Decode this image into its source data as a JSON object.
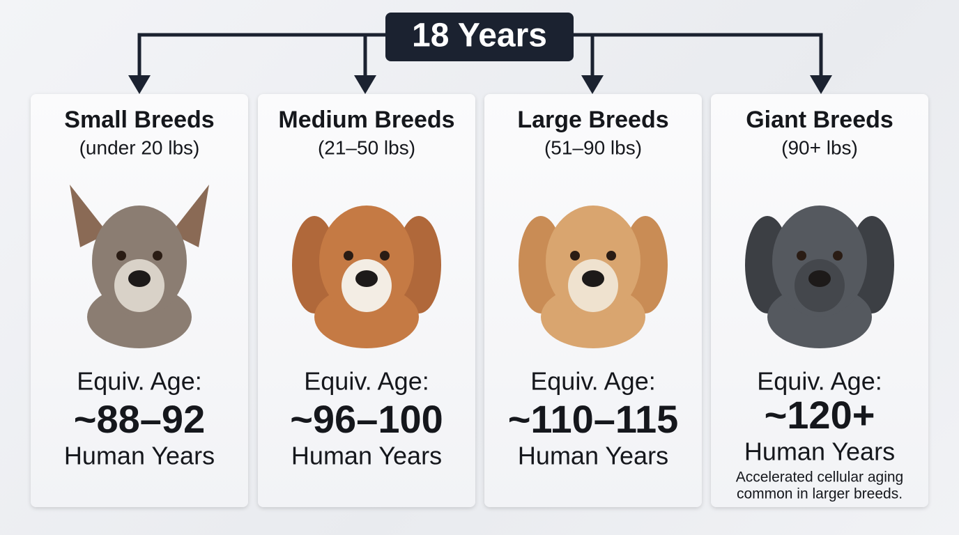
{
  "header": {
    "title": "18 Years"
  },
  "cards": [
    {
      "title": "Small Breeds",
      "subtitle": "(under 20 lbs)",
      "age_label": "Equiv. Age:",
      "age": "~88–92",
      "unit": "Human Years"
    },
    {
      "title": "Medium Breeds",
      "subtitle": "(21–50 lbs)",
      "age_label": "Equiv. Age:",
      "age": "~96–100",
      "unit": "Human Years"
    },
    {
      "title": "Large Breeds",
      "subtitle": "(51–90 lbs)",
      "age_label": "Equiv. Age:",
      "age": "~110–115",
      "unit": "Human Years"
    },
    {
      "title": "Giant Breeds",
      "subtitle": "(90+ lbs)",
      "age_label": "Equiv. Age:",
      "age": "~120+",
      "unit": "Human Years",
      "note": [
        "Accelerated cellular aging",
        "common in larger breeds."
      ]
    }
  ]
}
